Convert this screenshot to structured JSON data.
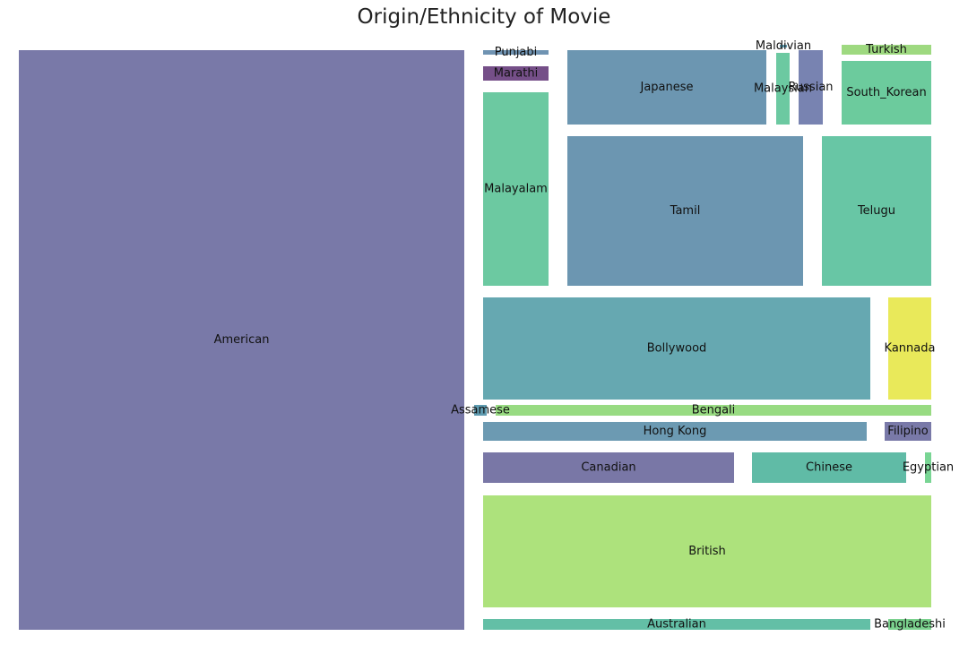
{
  "chart_data": {
    "type": "treemap",
    "title": "Origin/Ethnicity of Movie",
    "grid": false,
    "legend": "none",
    "items": [
      {
        "label": "American",
        "color": "#7979a8"
      },
      {
        "label": "Punjabi",
        "color": "#6f93b2"
      },
      {
        "label": "Marathi",
        "color": "#754f88"
      },
      {
        "label": "Malayalam",
        "color": "#6cc9a1"
      },
      {
        "label": "Japanese",
        "color": "#6c96b1"
      },
      {
        "label": "Maldivian",
        "color": "#5e9bb0"
      },
      {
        "label": "Malaysian",
        "color": "#6cc9a1"
      },
      {
        "label": "Russian",
        "color": "#7883b1"
      },
      {
        "label": "Turkish",
        "color": "#9ed980"
      },
      {
        "label": "South_Korean",
        "color": "#6ccb9d"
      },
      {
        "label": "Tamil",
        "color": "#6c96b1"
      },
      {
        "label": "Telugu",
        "color": "#68c6a5"
      },
      {
        "label": "Bollywood",
        "color": "#66a8b1"
      },
      {
        "label": "Kannada",
        "color": "#e9e95a"
      },
      {
        "label": "Assamese",
        "color": "#5e9bb0"
      },
      {
        "label": "Bengali",
        "color": "#98db82"
      },
      {
        "label": "Hong Kong",
        "color": "#6c9ab2"
      },
      {
        "label": "Filipino",
        "color": "#7979a8"
      },
      {
        "label": "Canadian",
        "color": "#7977a6"
      },
      {
        "label": "Chinese",
        "color": "#60bba6"
      },
      {
        "label": "Egyptian",
        "color": "#79d594"
      },
      {
        "label": "British",
        "color": "#ade27c"
      },
      {
        "label": "Australian",
        "color": "#63bfa6"
      },
      {
        "label": "Bangladeshi",
        "color": "#7ad18d"
      }
    ]
  }
}
